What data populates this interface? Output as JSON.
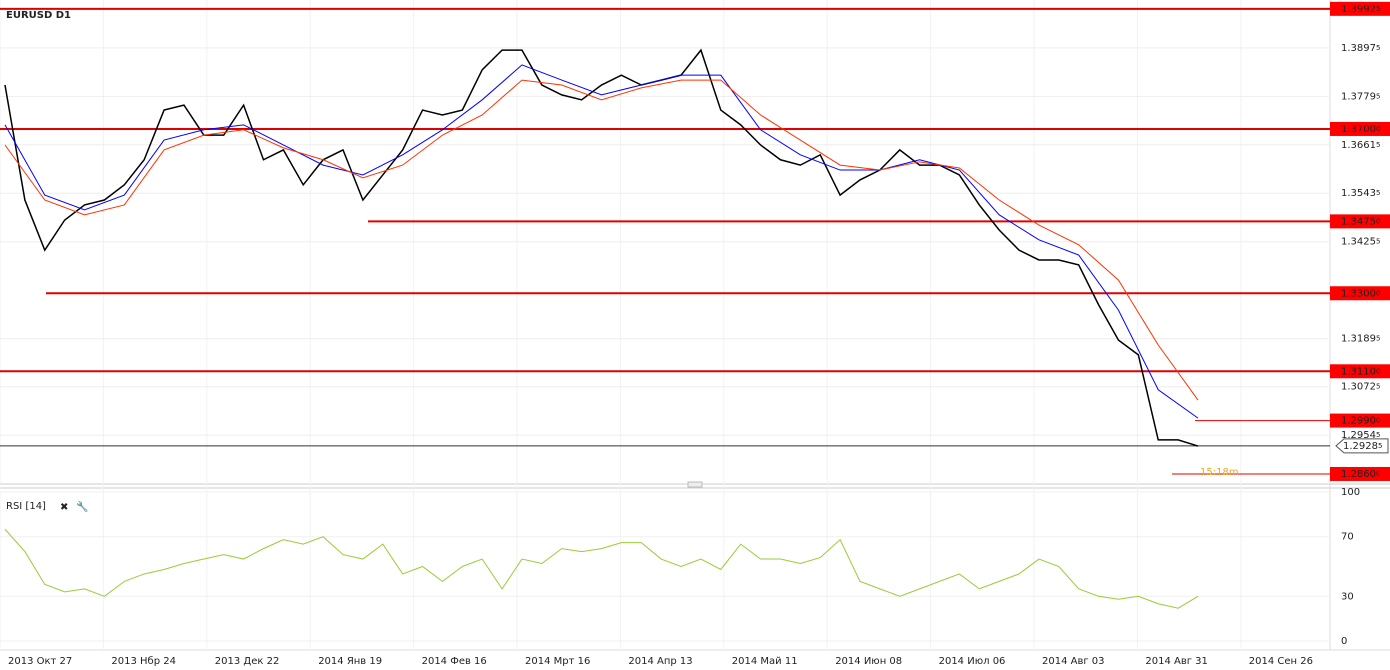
{
  "chart_data": [
    {
      "type": "line",
      "title": "EURUSD D1",
      "ylim": [
        1.2838,
        1.4014
      ],
      "yticks": [
        {
          "value": 1.38975,
          "label": "1.38975"
        },
        {
          "value": 1.37795,
          "label": "1.37795"
        },
        {
          "value": 1.36615,
          "label": "1.36615"
        },
        {
          "value": 1.35435,
          "label": "1.35435"
        },
        {
          "value": 1.34255,
          "label": "1.34255"
        },
        {
          "value": 1.31895,
          "label": "1.31895"
        },
        {
          "value": 1.30725,
          "label": "1.30725"
        },
        {
          "value": 1.29545,
          "label": "1.29545"
        }
      ],
      "levels": [
        {
          "value": 1.39925,
          "label": "1.39925"
        },
        {
          "value": 1.37,
          "label": "1.37000"
        },
        {
          "value": 1.3475,
          "label": "1.34750"
        },
        {
          "value": 1.33,
          "label": "1.33000"
        },
        {
          "value": 1.311,
          "label": "1.31100"
        },
        {
          "value": 1.299,
          "label": "1.29900"
        },
        {
          "value": 1.286,
          "label": "1.28600"
        }
      ],
      "current_price": {
        "value": 1.29285,
        "label": "1.29285"
      },
      "timer": "15:18m",
      "x_labels": [
        "2013 Окт 27",
        "2013 Нбр 24",
        "2013 Дек 22",
        "2014 Янв 19",
        "2014 Фев 16",
        "2014 Мрт 16",
        "2014 Апр 13",
        "2014 Май 11",
        "2014 Июн 08",
        "2014 Июл 06",
        "2014 Авг 03",
        "2014 Авг 31",
        "2014 Сен 26"
      ],
      "series": [
        {
          "color": "#000000",
          "values": [
            1.3807,
            1.3527,
            1.3405,
            1.3478,
            1.3515,
            1.3527,
            1.3564,
            1.3625,
            1.3746,
            1.3758,
            1.3685,
            1.3685,
            1.3758,
            1.3625,
            1.3649,
            1.3564,
            1.3625,
            1.3649,
            1.3527,
            1.3588,
            1.3649,
            1.3746,
            1.3734,
            1.3746,
            1.3844,
            1.3892,
            1.3892,
            1.3807,
            1.3783,
            1.3771,
            1.3807,
            1.3831,
            1.3807,
            1.3819,
            1.3831,
            1.3892,
            1.3746,
            1.371,
            1.3661,
            1.3625,
            1.3612,
            1.3637,
            1.3539,
            1.3576,
            1.36,
            1.3649,
            1.3612,
            1.3612,
            1.3588,
            1.3515,
            1.3454,
            1.3405,
            1.3381,
            1.3381,
            1.3369,
            1.3272,
            1.3186,
            1.315,
            1.2943,
            1.2943,
            1.2928
          ]
        },
        {
          "color": "#0000ff",
          "values": [
            1.371,
            1.3539,
            1.3503,
            1.3539,
            1.3673,
            1.3698,
            1.371,
            1.3661,
            1.3612,
            1.3588,
            1.3637,
            1.3698,
            1.3771,
            1.3856,
            1.3819,
            1.3783,
            1.3807,
            1.3831,
            1.3831,
            1.3698,
            1.3637,
            1.36,
            1.36,
            1.3625,
            1.36,
            1.3491,
            1.343,
            1.3393,
            1.3259,
            1.3065,
            1.2996
          ]
        },
        {
          "color": "#ff3300",
          "values": [
            1.3661,
            1.3527,
            1.3491,
            1.3515,
            1.3649,
            1.3685,
            1.3698,
            1.3654,
            1.3625,
            1.3581,
            1.3612,
            1.3685,
            1.3734,
            1.3819,
            1.3807,
            1.3771,
            1.38,
            1.3819,
            1.3819,
            1.3734,
            1.3673,
            1.3612,
            1.36,
            1.362,
            1.3605,
            1.3527,
            1.3466,
            1.3418,
            1.3332,
            1.3174,
            1.304
          ]
        }
      ]
    },
    {
      "type": "line",
      "title": "RSI [14]",
      "ylim": [
        0,
        100
      ],
      "yticks": [
        0,
        30,
        70,
        100
      ],
      "series": [
        {
          "color": "#99cc33",
          "values": [
            75,
            60,
            38,
            33,
            35,
            30,
            40,
            45,
            48,
            52,
            55,
            58,
            55,
            62,
            68,
            65,
            70,
            58,
            55,
            65,
            45,
            50,
            40,
            50,
            55,
            35,
            55,
            52,
            62,
            60,
            62,
            66,
            66,
            55,
            50,
            55,
            48,
            65,
            55,
            55,
            52,
            56,
            68,
            40,
            35,
            30,
            35,
            40,
            45,
            35,
            40,
            45,
            55,
            50,
            35,
            30,
            28,
            30,
            25,
            22,
            30
          ]
        }
      ]
    }
  ]
}
